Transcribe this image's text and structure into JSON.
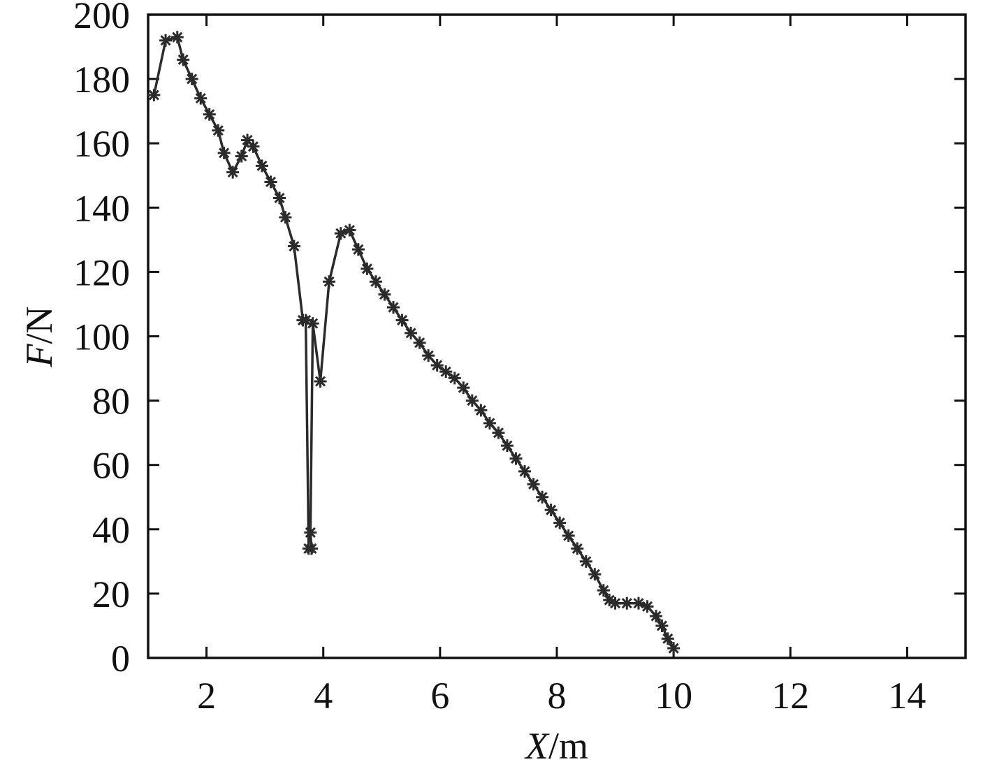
{
  "chart_data": {
    "type": "line",
    "marker": "asterisk",
    "xlabel": {
      "var": "X",
      "unit": "/m"
    },
    "ylabel": {
      "var": "F",
      "unit": "/N"
    },
    "xlim": [
      1,
      15
    ],
    "ylim": [
      0,
      200
    ],
    "xticks": [
      2,
      4,
      6,
      8,
      10,
      12,
      14
    ],
    "yticks": [
      0,
      20,
      40,
      60,
      80,
      100,
      120,
      140,
      160,
      180,
      200
    ],
    "grid": false,
    "colors": {
      "line": "#2b2b2b",
      "axis": "#111111"
    },
    "series": [
      {
        "x": [
          1.1,
          1.3,
          1.5,
          1.6,
          1.75,
          1.9,
          2.05,
          2.2,
          2.3,
          2.45,
          2.6,
          2.7,
          2.8,
          2.95,
          3.1,
          3.25,
          3.35,
          3.5,
          3.65,
          3.7,
          3.75,
          3.8,
          3.78,
          3.82,
          3.95,
          4.1,
          4.3,
          4.45,
          4.6,
          4.75,
          4.9,
          5.05,
          5.2,
          5.35,
          5.5,
          5.65,
          5.8,
          5.95,
          6.1,
          6.25,
          6.4,
          6.55,
          6.7,
          6.85,
          7.0,
          7.15,
          7.3,
          7.45,
          7.6,
          7.75,
          7.9,
          8.05,
          8.2,
          8.35,
          8.5,
          8.65,
          8.8,
          8.9,
          9.0,
          9.2,
          9.4,
          9.55,
          9.7,
          9.8,
          9.9,
          10.0
        ],
        "y": [
          175,
          192,
          193,
          186,
          180,
          174,
          169,
          164,
          157,
          151,
          156,
          161,
          159,
          153,
          148,
          143,
          137,
          128,
          105,
          105,
          34,
          34,
          39,
          104,
          86,
          117,
          132,
          133,
          127,
          121,
          117,
          113,
          109,
          105,
          101,
          98,
          94,
          91,
          89,
          87,
          84,
          80,
          77,
          73,
          70,
          66,
          62,
          58,
          54,
          50,
          46,
          42,
          38,
          34,
          30,
          26,
          21,
          18,
          17,
          17,
          17,
          16,
          13,
          10,
          6,
          3
        ]
      }
    ]
  }
}
